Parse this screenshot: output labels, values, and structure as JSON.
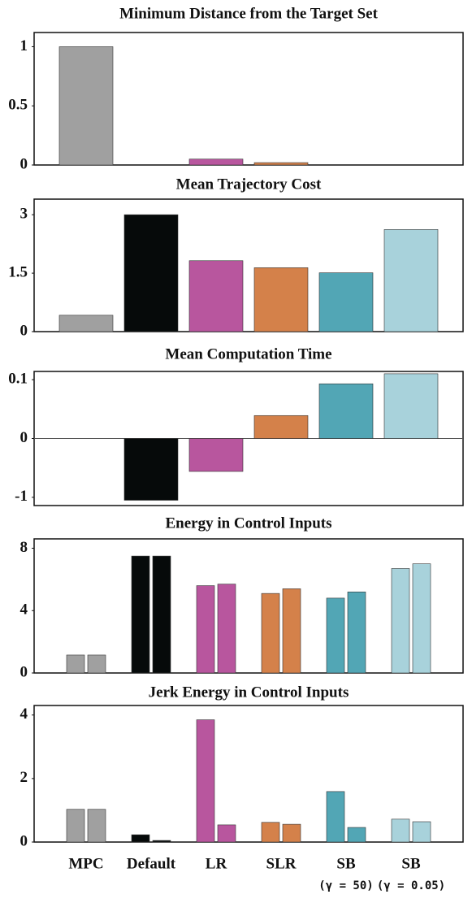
{
  "chart_data": [
    {
      "type": "bar",
      "title": "Minimum Distance from the Target Set",
      "values": [
        1,
        0,
        0.05,
        0.02,
        0,
        0
      ],
      "colors": [
        "#a0a0a0",
        "#060a0a",
        "#b8569e",
        "#d4814a",
        "#52a6b5",
        "#a8d2db"
      ],
      "ylim": [
        0,
        1.12
      ],
      "yticks": [
        0,
        0.5,
        1
      ]
    },
    {
      "type": "bar",
      "title": "Mean Trajectory Cost",
      "values": [
        0.42,
        3.0,
        1.82,
        1.64,
        1.51,
        2.62
      ],
      "colors": [
        "#a0a0a0",
        "#060a0a",
        "#b8569e",
        "#d4814a",
        "#52a6b5",
        "#a8d2db"
      ],
      "ylim": [
        0,
        3.4
      ],
      "yticks": [
        0,
        1.5,
        3
      ]
    },
    {
      "type": "bar",
      "title": "Mean Computation Time",
      "values": [
        0,
        -1.05,
        -0.56,
        0.039,
        0.093,
        0.11
      ],
      "colors": [
        "#a0a0a0",
        "#060a0a",
        "#b8569e",
        "#d4814a",
        "#52a6b5",
        "#a8d2db"
      ],
      "ylim": [
        -1.14,
        0.114
      ],
      "yticks": [
        -1,
        0,
        0.1
      ]
    },
    {
      "type": "grouped_bar",
      "title": "Energy in Control Inputs",
      "series": [
        {
          "values": [
            1.15,
            7.5,
            5.6,
            5.1,
            4.8,
            6.7
          ]
        },
        {
          "values": [
            1.15,
            7.5,
            5.7,
            5.4,
            5.2,
            7.0
          ]
        }
      ],
      "colors": [
        "#a0a0a0",
        "#060a0a",
        "#b8569e",
        "#d4814a",
        "#52a6b5",
        "#a8d2db"
      ],
      "ylim": [
        0,
        8.6
      ],
      "yticks": [
        0,
        4,
        8
      ]
    },
    {
      "type": "grouped_bar",
      "title": "Jerk Energy in Control Inputs",
      "categories": [
        "MPC",
        "Default",
        "LR",
        "SLR",
        "SB",
        "SB"
      ],
      "category_notes": [
        null,
        null,
        null,
        null,
        "(γ = 50)",
        "(γ = 0.05)"
      ],
      "series": [
        {
          "values": [
            1.03,
            0.23,
            3.85,
            0.62,
            1.59,
            0.72
          ]
        },
        {
          "values": [
            1.03,
            0.05,
            0.54,
            0.56,
            0.46,
            0.64
          ]
        }
      ],
      "colors": [
        "#a0a0a0",
        "#060a0a",
        "#b8569e",
        "#d4814a",
        "#52a6b5",
        "#a8d2db"
      ],
      "ylim": [
        0,
        4.3
      ],
      "yticks": [
        0,
        2,
        4
      ]
    }
  ]
}
